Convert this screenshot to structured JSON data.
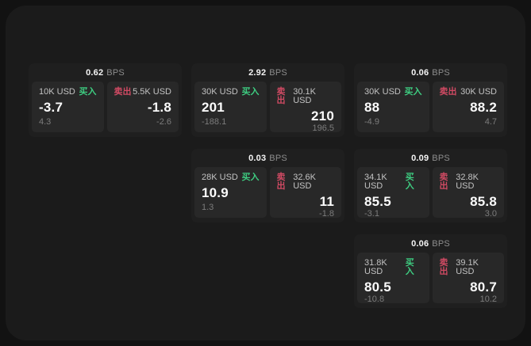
{
  "app": {
    "background": "#121212",
    "panel_background": "#1b1b1b"
  },
  "colors": {
    "buy_green": "#3ecd81",
    "sell_red": "#d04a63",
    "card_background": "#1f1f1f",
    "tile_background": "#282828"
  },
  "labels": {
    "bps_unit": "BPS",
    "buy": "买入",
    "sell": "卖出"
  },
  "cards": [
    {
      "row": 1,
      "col": 1,
      "bps": "0.62",
      "buy": {
        "amount": "10K USD",
        "price": "-3.7",
        "delta": "4.3"
      },
      "sell": {
        "amount": "5.5K USD",
        "price": "-1.8",
        "delta": "-2.6"
      }
    },
    {
      "row": 1,
      "col": 2,
      "bps": "2.92",
      "buy": {
        "amount": "30K USD",
        "price": "201",
        "delta": "-188.1"
      },
      "sell": {
        "amount": "30.1K USD",
        "price": "210",
        "delta": "196.5"
      }
    },
    {
      "row": 1,
      "col": 3,
      "bps": "0.06",
      "buy": {
        "amount": "30K USD",
        "price": "88",
        "delta": "-4.9"
      },
      "sell": {
        "amount": "30K USD",
        "price": "88.2",
        "delta": "4.7"
      }
    },
    {
      "row": 2,
      "col": 2,
      "bps": "0.03",
      "buy": {
        "amount": "28K USD",
        "price": "10.9",
        "delta": "1.3"
      },
      "sell": {
        "amount": "32.6K USD",
        "price": "11",
        "delta": "-1.8"
      }
    },
    {
      "row": 2,
      "col": 3,
      "bps": "0.09",
      "buy": {
        "amount": "34.1K USD",
        "price": "85.5",
        "delta": "-3.1"
      },
      "sell": {
        "amount": "32.8K USD",
        "price": "85.8",
        "delta": "3.0"
      }
    },
    {
      "row": 3,
      "col": 3,
      "bps": "0.06",
      "buy": {
        "amount": "31.8K USD",
        "price": "80.5",
        "delta": "-10.8"
      },
      "sell": {
        "amount": "39.1K USD",
        "price": "80.7",
        "delta": "10.2"
      }
    }
  ]
}
